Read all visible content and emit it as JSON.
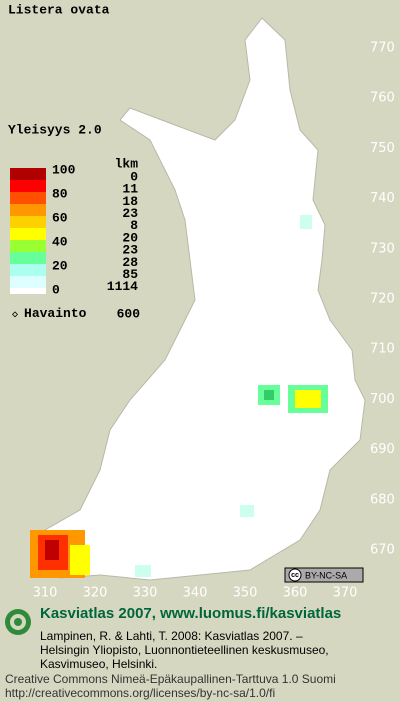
{
  "title": "Listera ovata",
  "map": {
    "y_labels": [
      770,
      760,
      750,
      740,
      730,
      720,
      710,
      700,
      690,
      680,
      670
    ],
    "x_labels": [
      310,
      320,
      330,
      340,
      350,
      360,
      370
    ]
  },
  "legend": {
    "heading": "Yleisyys 2.0",
    "scale_labels": [
      100,
      80,
      60,
      40,
      20,
      0
    ],
    "count_heading": "lkm",
    "counts": [
      0,
      11,
      18,
      23,
      8,
      20,
      23,
      28,
      85,
      1114
    ],
    "observation_label": "Havainto",
    "observation_count": 600
  },
  "badge": {
    "icon": "cc",
    "text": "BY-NC-SA"
  },
  "footer": {
    "title": "Kasviatlas 2007, www.luomus.fi/kasviatlas",
    "citation": [
      "Lampinen, R. & Lahti, T. 2008: Kasviatlas 2007. –",
      "Helsingin Yliopisto, Luonnontieteellinen keskusmuseo,",
      "Kasvimuseo, Helsinki."
    ],
    "license": [
      "Creative Commons Nimeä-Epäkaupallinen-Tarttuva 1.0 Suomi",
      "http://creativecommons.org/licenses/by-nc-sa/1.0/fi"
    ]
  }
}
